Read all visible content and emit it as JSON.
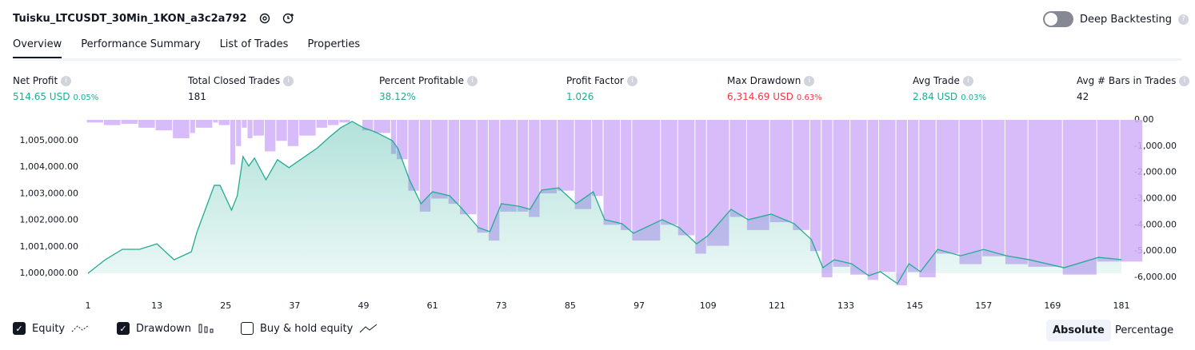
{
  "header": {
    "title": "Tuisku_LTCUSDT_30Min_1KON_a3c2a792",
    "deep_backtesting": "Deep Backtesting"
  },
  "tabs": [
    "Overview",
    "Performance Summary",
    "List of Trades",
    "Properties"
  ],
  "metrics": [
    {
      "label": "Net Profit",
      "value": "514.65 USD",
      "percent": "0.05%"
    },
    {
      "label": "Total Closed Trades",
      "value": "181"
    },
    {
      "label": "Percent Profitable",
      "value": "38.12%"
    },
    {
      "label": "Profit Factor",
      "value": "1.026"
    },
    {
      "label": "Max Drawdown",
      "value": "6,314.69 USD",
      "percent": "0.63%"
    },
    {
      "label": "Avg Trade",
      "value": "2.84 USD",
      "percent": "0.03%"
    },
    {
      "label": "Avg # Bars in Trades",
      "value": "42"
    }
  ],
  "chart_data": {
    "type": "line",
    "xlim": [
      1,
      181
    ],
    "xticks": [
      1,
      13,
      25,
      37,
      49,
      61,
      73,
      85,
      97,
      109,
      121,
      133,
      145,
      157,
      169,
      181
    ],
    "ylim": [
      999850,
      1005780
    ],
    "yticks": [
      {
        "value": 1000000,
        "label": "1,000,000.00"
      },
      {
        "value": 1001000,
        "label": "1,001,000.00"
      },
      {
        "value": 1002000,
        "label": "1,002,000.00"
      },
      {
        "value": 1003000,
        "label": "1,003,000.00"
      },
      {
        "value": 1004000,
        "label": "1,004,000.00"
      },
      {
        "value": 1005000,
        "label": "1,005,000.00"
      }
    ],
    "y2lim": [
      -6000,
      0
    ],
    "y2ticks": [
      {
        "value": 0,
        "label": "0.00"
      },
      {
        "value": -1000,
        "label": "-1,000.00"
      },
      {
        "value": -2000,
        "label": "-2,000.00"
      },
      {
        "value": -3000,
        "label": "-3,000.00"
      },
      {
        "value": -4000,
        "label": "-4,000.00"
      },
      {
        "value": -5000,
        "label": "-5,000.00"
      },
      {
        "value": -6000,
        "label": "-6,000.00"
      }
    ],
    "series": [
      {
        "name": "Equity",
        "color": "#22ab94",
        "axis": "y",
        "x": [
          1,
          4,
          7,
          10,
          13,
          16,
          19,
          20,
          23,
          24,
          26,
          27,
          28,
          29,
          30,
          32,
          34,
          36,
          38,
          41,
          43,
          45,
          47,
          49,
          51,
          54,
          55,
          57,
          59,
          61,
          64,
          66,
          69,
          71,
          73,
          76,
          78,
          80,
          83,
          86,
          89,
          91,
          94,
          96,
          101,
          104,
          107,
          109,
          113,
          116,
          120,
          124,
          127,
          129,
          131,
          134,
          137,
          139,
          142,
          144,
          146,
          149,
          153,
          157,
          161,
          165,
          171,
          177,
          181
        ],
        "values": [
          1000000,
          1000512,
          1000904,
          1000904,
          1001110,
          1000510,
          1000810,
          1001566,
          1003313,
          1003313,
          1002380,
          1002920,
          1004400,
          1004040,
          1004340,
          1003520,
          1004280,
          1003980,
          1004280,
          1004730,
          1005120,
          1005480,
          1005720,
          1005480,
          1005330,
          1005000,
          1004700,
          1003520,
          1002620,
          1003070,
          1002920,
          1002470,
          1001720,
          1001570,
          1002620,
          1002530,
          1002410,
          1003130,
          1003220,
          1002620,
          1003070,
          1002020,
          1001870,
          1001510,
          1002020,
          1001720,
          1001110,
          1001420,
          1002410,
          1002020,
          1002230,
          1001870,
          1001270,
          1000210,
          1000510,
          1000360,
          999910,
          1000060,
          999610,
          1000360,
          1000060,
          1000900,
          1000660,
          1000900,
          1000660,
          1000510,
          1000210,
          1000600,
          1000514.65
        ]
      },
      {
        "name": "Drawdown",
        "color": "#d1b0f9",
        "axis": "y2",
        "x": [
          1,
          4,
          7,
          10,
          13,
          16,
          19,
          20,
          23,
          24,
          26,
          27,
          28,
          29,
          30,
          32,
          34,
          36,
          38,
          41,
          43,
          45,
          47,
          49,
          51,
          54,
          55,
          57,
          59,
          61,
          64,
          66,
          69,
          71,
          73,
          76,
          78,
          80,
          83,
          86,
          89,
          91,
          94,
          96,
          101,
          104,
          107,
          109,
          113,
          116,
          120,
          124,
          127,
          129,
          131,
          134,
          137,
          139,
          142,
          144,
          146,
          149,
          153,
          157,
          161,
          165,
          171,
          177,
          181
        ],
        "values": [
          -100,
          -200,
          -150,
          -300,
          -400,
          -700,
          -500,
          -300,
          -100,
          -200,
          -1700,
          -1000,
          -300,
          -700,
          -600,
          -1200,
          -800,
          -1000,
          -600,
          -300,
          -200,
          -100,
          0,
          -400,
          -500,
          -1300,
          -1500,
          -2700,
          -3500,
          -3000,
          -3200,
          -3600,
          -4300,
          -4600,
          -3500,
          -3500,
          -3700,
          -2800,
          -2700,
          -3400,
          -2900,
          -4000,
          -4200,
          -4600,
          -4000,
          -4400,
          -5100,
          -4800,
          -3700,
          -4200,
          -3900,
          -4200,
          -5000,
          -6000,
          -5600,
          -5900,
          -6100,
          -5800,
          -6310,
          -5800,
          -6000,
          -5100,
          -5500,
          -5200,
          -5500,
          -5600,
          -5900,
          -5400,
          -5400
        ]
      }
    ]
  },
  "controls": {
    "buy_hold": "Buy & hold equity",
    "absolute": "Absolute",
    "percentage": "Percentage"
  }
}
